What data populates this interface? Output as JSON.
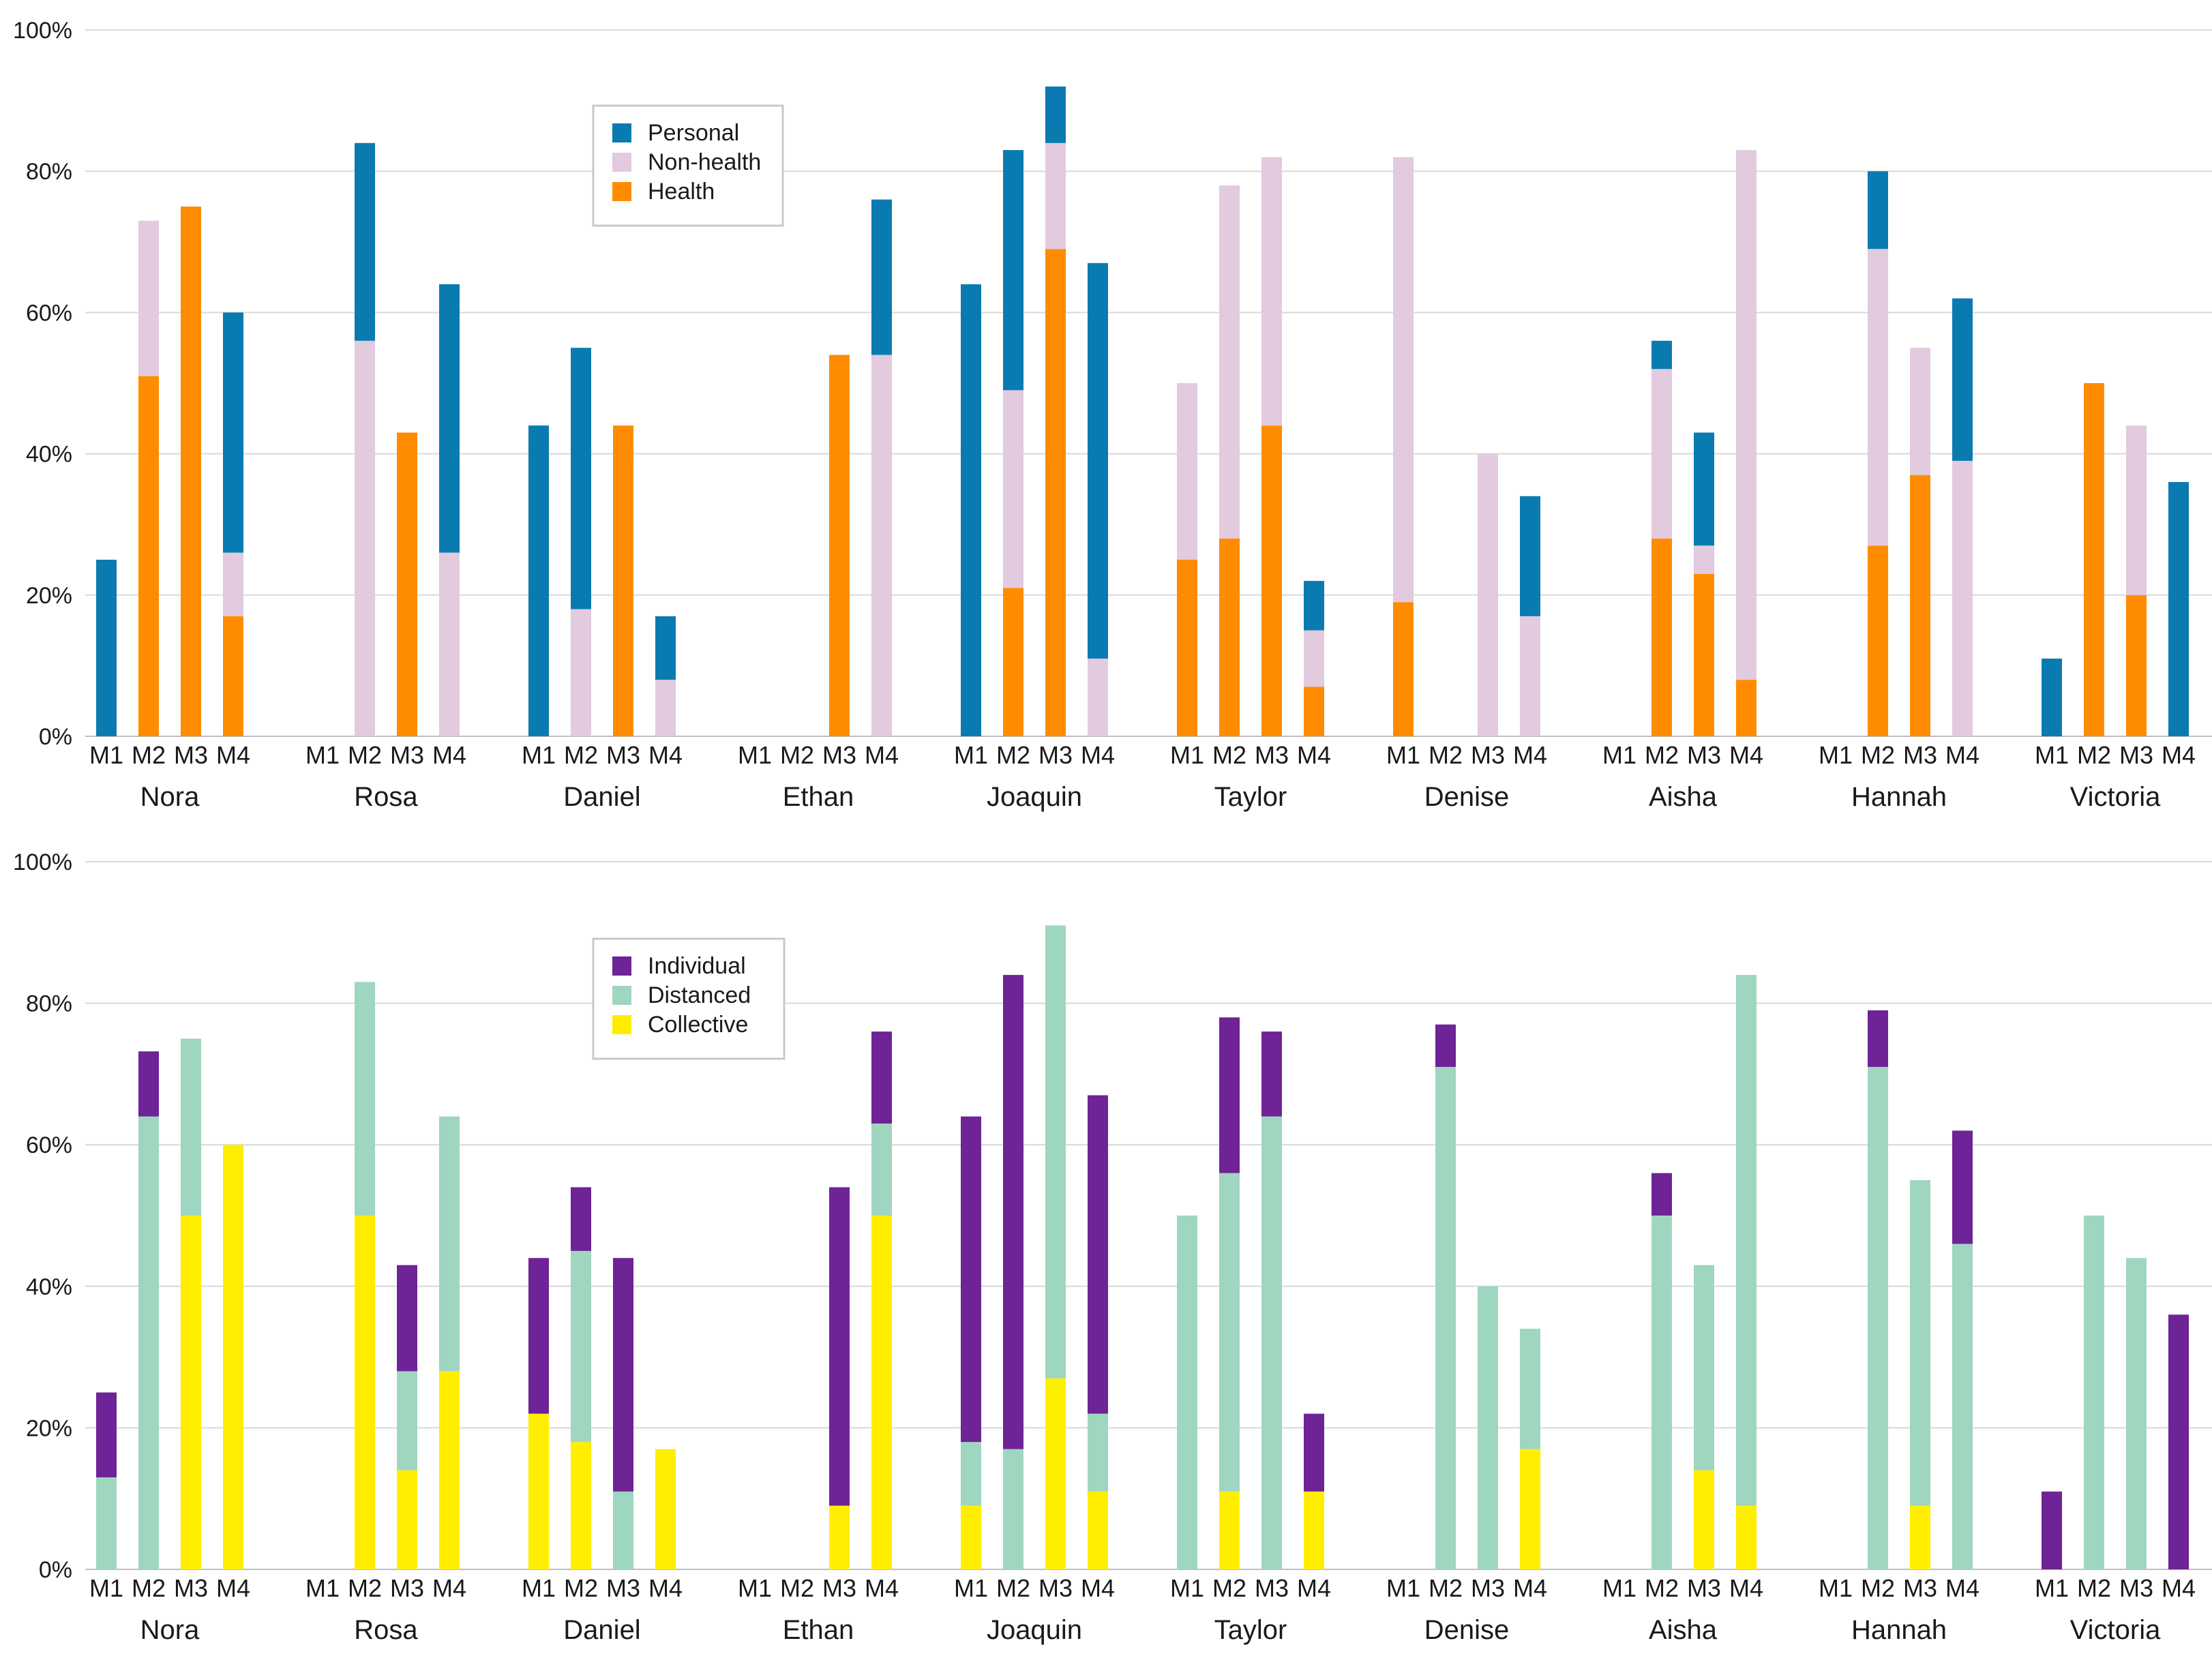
{
  "colors": {
    "Personal": "#0a7bb1",
    "Non-health": "#e2cadf",
    "Health": "#ff8c00",
    "Individual": "#6e2396",
    "Distanced": "#9fd6c0",
    "Collective": "#ffee00"
  },
  "chart_data": [
    {
      "type": "bar",
      "stacked": true,
      "y_ticks": [
        "0%",
        "20%",
        "40%",
        "60%",
        "80%",
        "100%"
      ],
      "ylim": [
        0,
        100
      ],
      "participants": [
        "Nora",
        "Rosa",
        "Daniel",
        "Ethan",
        "Joaquin",
        "Taylor",
        "Denise",
        "Aisha",
        "Hannah",
        "Victoria"
      ],
      "measures": [
        "M1",
        "M2",
        "M3",
        "M4"
      ],
      "legend": [
        "Personal",
        "Non-health",
        "Health"
      ],
      "stack_order": [
        "Health",
        "Non-health",
        "Personal"
      ],
      "values": {
        "Nora": [
          {
            "Health": 0,
            "Non-health": 0,
            "Personal": 25
          },
          {
            "Health": 51,
            "Non-health": 22,
            "Personal": 0
          },
          {
            "Health": 75,
            "Non-health": 0,
            "Personal": 0
          },
          {
            "Health": 17,
            "Non-health": 9,
            "Personal": 34
          }
        ],
        "Rosa": [
          {
            "Health": 0,
            "Non-health": 0,
            "Personal": 0
          },
          {
            "Health": 0,
            "Non-health": 56,
            "Personal": 28
          },
          {
            "Health": 43,
            "Non-health": 0,
            "Personal": 0
          },
          {
            "Health": 0,
            "Non-health": 26,
            "Personal": 38
          }
        ],
        "Daniel": [
          {
            "Health": 0,
            "Non-health": 0,
            "Personal": 44
          },
          {
            "Health": 0,
            "Non-health": 18,
            "Personal": 37
          },
          {
            "Health": 44,
            "Non-health": 0,
            "Personal": 0
          },
          {
            "Health": 0,
            "Non-health": 8,
            "Personal": 9
          }
        ],
        "Ethan": [
          {
            "Health": 0,
            "Non-health": 0,
            "Personal": 0
          },
          {
            "Health": 0,
            "Non-health": 0,
            "Personal": 0
          },
          {
            "Health": 54,
            "Non-health": 0,
            "Personal": 0
          },
          {
            "Health": 0,
            "Non-health": 54,
            "Personal": 22
          }
        ],
        "Joaquin": [
          {
            "Health": 0,
            "Non-health": 0,
            "Personal": 64
          },
          {
            "Health": 21,
            "Non-health": 28,
            "Personal": 34
          },
          {
            "Health": 69,
            "Non-health": 15,
            "Personal": 8
          },
          {
            "Health": 0,
            "Non-health": 11,
            "Personal": 56
          }
        ],
        "Taylor": [
          {
            "Health": 25,
            "Non-health": 25,
            "Personal": 0
          },
          {
            "Health": 28,
            "Non-health": 50,
            "Personal": 0
          },
          {
            "Health": 44,
            "Non-health": 38,
            "Personal": 0
          },
          {
            "Health": 7,
            "Non-health": 8,
            "Personal": 7
          }
        ],
        "Denise": [
          {
            "Health": 19,
            "Non-health": 63,
            "Personal": 0
          },
          {
            "Health": 0,
            "Non-health": 0,
            "Personal": 0
          },
          {
            "Health": 0,
            "Non-health": 40,
            "Personal": 0
          },
          {
            "Health": 0,
            "Non-health": 17,
            "Personal": 17
          }
        ],
        "Aisha": [
          {
            "Health": 0,
            "Non-health": 0,
            "Personal": 0
          },
          {
            "Health": 28,
            "Non-health": 24,
            "Personal": 4
          },
          {
            "Health": 23,
            "Non-health": 4,
            "Personal": 16
          },
          {
            "Health": 8,
            "Non-health": 75,
            "Personal": 0
          }
        ],
        "Hannah": [
          {
            "Health": 0,
            "Non-health": 0,
            "Personal": 0
          },
          {
            "Health": 27,
            "Non-health": 42,
            "Personal": 11
          },
          {
            "Health": 37,
            "Non-health": 18,
            "Personal": 0
          },
          {
            "Health": 0,
            "Non-health": 39,
            "Personal": 23
          }
        ],
        "Victoria": [
          {
            "Health": 0,
            "Non-health": 0,
            "Personal": 11
          },
          {
            "Health": 50,
            "Non-health": 0,
            "Personal": 0
          },
          {
            "Health": 20,
            "Non-health": 24,
            "Personal": 0
          },
          {
            "Health": 0,
            "Non-health": 0,
            "Personal": 36
          }
        ]
      }
    },
    {
      "type": "bar",
      "stacked": true,
      "y_ticks": [
        "0%",
        "20%",
        "40%",
        "60%",
        "80%",
        "100%"
      ],
      "ylim": [
        0,
        100
      ],
      "participants": [
        "Nora",
        "Rosa",
        "Daniel",
        "Ethan",
        "Joaquin",
        "Taylor",
        "Denise",
        "Aisha",
        "Hannah",
        "Victoria"
      ],
      "measures": [
        "M1",
        "M2",
        "M3",
        "M4"
      ],
      "legend": [
        "Individual",
        "Distanced",
        "Collective"
      ],
      "stack_order": [
        "Collective",
        "Distanced",
        "Individual"
      ],
      "values": {
        "Nora": [
          {
            "Collective": 0,
            "Distanced": 13,
            "Individual": 12
          },
          {
            "Collective": 0,
            "Distanced": 64,
            "Individual": 9.2
          },
          {
            "Collective": 50,
            "Distanced": 25,
            "Individual": 0
          },
          {
            "Collective": 60,
            "Distanced": 0,
            "Individual": 0
          }
        ],
        "Rosa": [
          {
            "Collective": 0,
            "Distanced": 0,
            "Individual": 0
          },
          {
            "Collective": 50,
            "Distanced": 33,
            "Individual": 0
          },
          {
            "Collective": 14,
            "Distanced": 14,
            "Individual": 15
          },
          {
            "Collective": 28,
            "Distanced": 36,
            "Individual": 0
          }
        ],
        "Daniel": [
          {
            "Collective": 22,
            "Distanced": 0,
            "Individual": 22
          },
          {
            "Collective": 18,
            "Distanced": 27,
            "Individual": 9
          },
          {
            "Collective": 0,
            "Distanced": 11,
            "Individual": 33
          },
          {
            "Collective": 17,
            "Distanced": 0,
            "Individual": 0
          }
        ],
        "Ethan": [
          {
            "Collective": 0,
            "Distanced": 0,
            "Individual": 0
          },
          {
            "Collective": 0,
            "Distanced": 0,
            "Individual": 0
          },
          {
            "Collective": 9,
            "Distanced": 0,
            "Individual": 45
          },
          {
            "Collective": 50,
            "Distanced": 13,
            "Individual": 13
          }
        ],
        "Joaquin": [
          {
            "Collective": 9,
            "Distanced": 9,
            "Individual": 46
          },
          {
            "Collective": 0,
            "Distanced": 17,
            "Individual": 67
          },
          {
            "Collective": 27,
            "Distanced": 64,
            "Individual": 0
          },
          {
            "Collective": 11,
            "Distanced": 11,
            "Individual": 45
          }
        ],
        "Taylor": [
          {
            "Collective": 0,
            "Distanced": 50,
            "Individual": 0
          },
          {
            "Collective": 11,
            "Distanced": 45,
            "Individual": 22
          },
          {
            "Collective": 0,
            "Distanced": 64,
            "Individual": 12
          },
          {
            "Collective": 11,
            "Distanced": 0,
            "Individual": 11
          }
        ],
        "Denise": [
          {
            "Collective": 0,
            "Distanced": 0,
            "Individual": 0
          },
          {
            "Collective": 0,
            "Distanced": 71,
            "Individual": 6
          },
          {
            "Collective": 0,
            "Distanced": 40,
            "Individual": 0
          },
          {
            "Collective": 17,
            "Distanced": 17,
            "Individual": 0
          }
        ],
        "Aisha": [
          {
            "Collective": 0,
            "Distanced": 0,
            "Individual": 0
          },
          {
            "Collective": 0,
            "Distanced": 50,
            "Individual": 6
          },
          {
            "Collective": 14,
            "Distanced": 29,
            "Individual": 0
          },
          {
            "Collective": 9,
            "Distanced": 75,
            "Individual": 0
          }
        ],
        "Hannah": [
          {
            "Collective": 0,
            "Distanced": 0,
            "Individual": 0
          },
          {
            "Collective": 0,
            "Distanced": 71,
            "Individual": 8
          },
          {
            "Collective": 9,
            "Distanced": 46,
            "Individual": 0
          },
          {
            "Collective": 0,
            "Distanced": 46,
            "Individual": 16
          }
        ],
        "Victoria": [
          {
            "Collective": 0,
            "Distanced": 0,
            "Individual": 11
          },
          {
            "Collective": 0,
            "Distanced": 50,
            "Individual": 0
          },
          {
            "Collective": 0,
            "Distanced": 44,
            "Individual": 0
          },
          {
            "Collective": 0,
            "Distanced": 0,
            "Individual": 36
          }
        ]
      }
    }
  ]
}
